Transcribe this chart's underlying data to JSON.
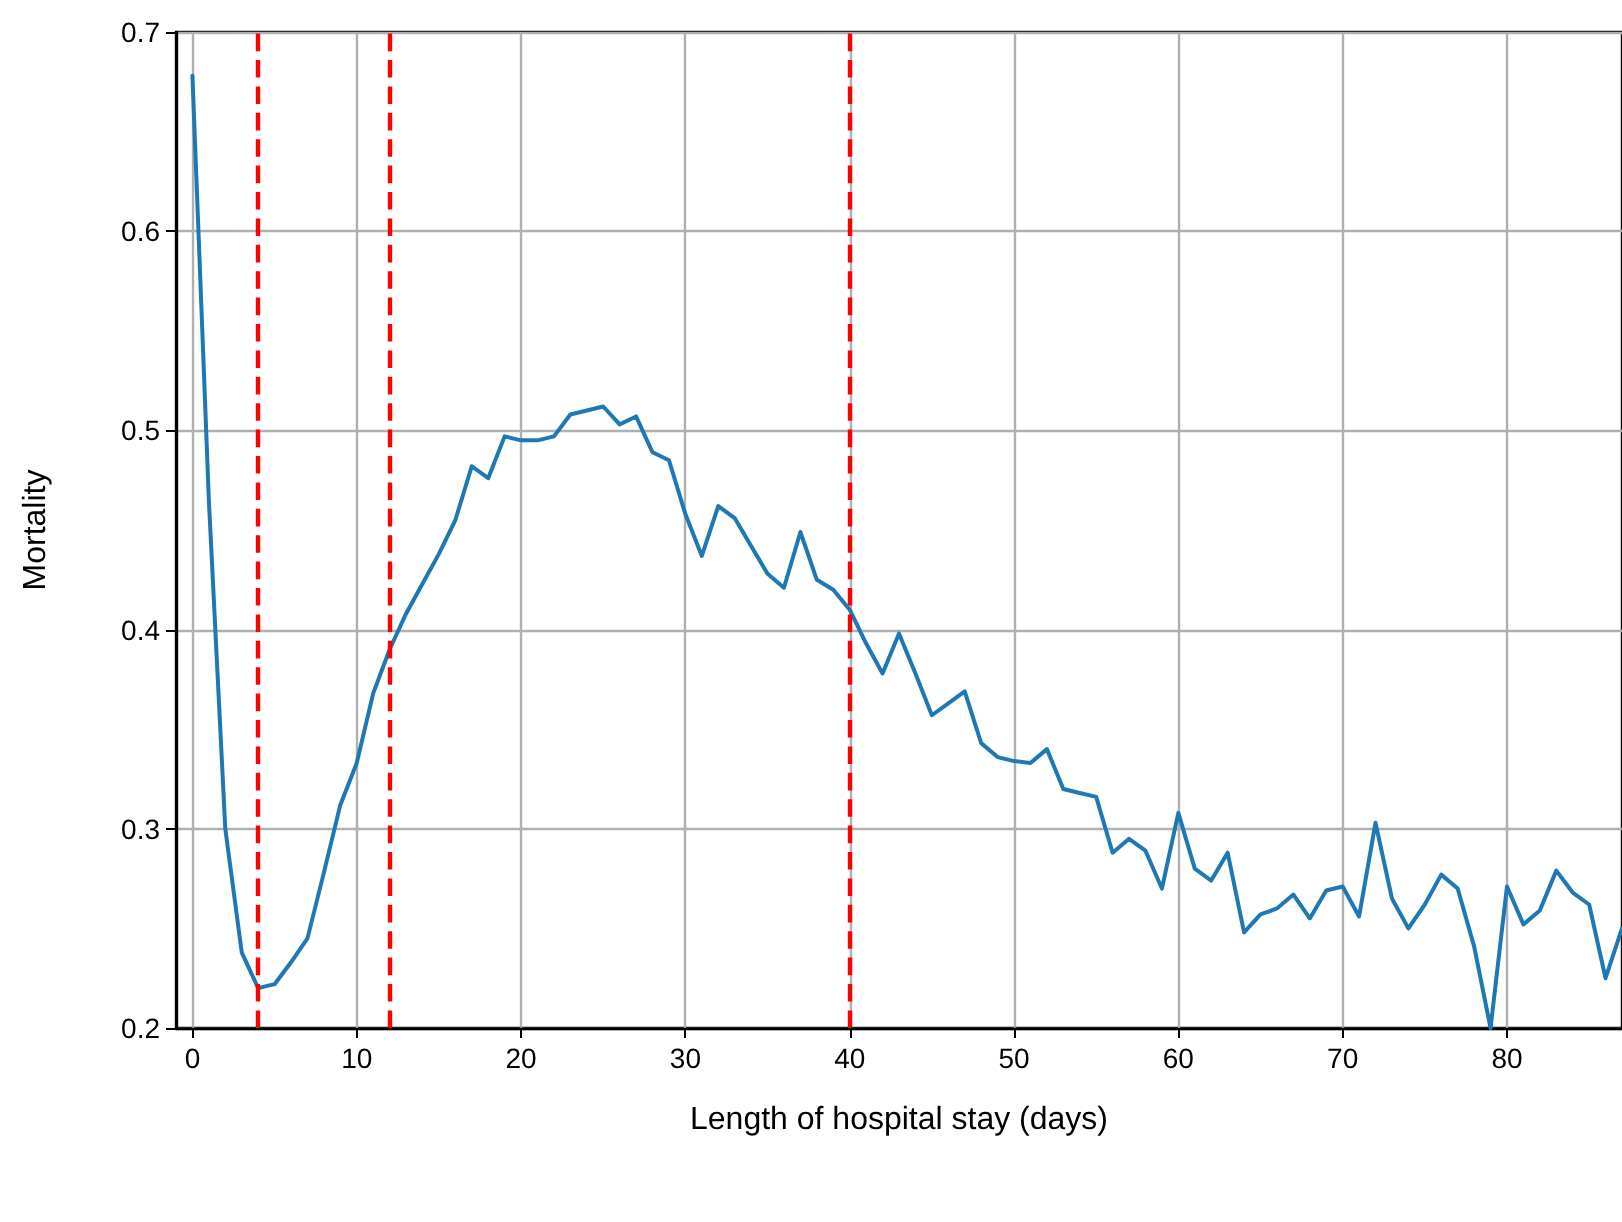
{
  "chart_data": {
    "type": "line",
    "xlabel": "Length of hospital stay (days)",
    "ylabel": "Mortality",
    "x": [
      0,
      1,
      2,
      3,
      4,
      5,
      6,
      7,
      8,
      9,
      10,
      11,
      12,
      13,
      14,
      15,
      16,
      17,
      18,
      19,
      20,
      21,
      22,
      23,
      24,
      25,
      26,
      27,
      28,
      29,
      30,
      31,
      32,
      33,
      34,
      35,
      36,
      37,
      38,
      39,
      40,
      41,
      42,
      43,
      44,
      45,
      46,
      47,
      48,
      49,
      50,
      51,
      52,
      53,
      54,
      55,
      56,
      57,
      58,
      59,
      60,
      61,
      62,
      63,
      64,
      65,
      66,
      67,
      68,
      69,
      70,
      71,
      72,
      73,
      74,
      75,
      76,
      77,
      78,
      79,
      80,
      81,
      82,
      83,
      84,
      85,
      86,
      87
    ],
    "series": [
      {
        "color": "#1f77b4",
        "values": [
          0.678,
          0.465,
          0.3,
          0.238,
          0.22,
          0.222,
          0.233,
          0.245,
          0.278,
          0.312,
          0.333,
          0.368,
          0.39,
          0.408,
          0.423,
          0.438,
          0.455,
          0.482,
          0.476,
          0.497,
          0.495,
          0.495,
          0.497,
          0.508,
          0.51,
          0.512,
          0.503,
          0.507,
          0.489,
          0.485,
          0.458,
          0.437,
          0.462,
          0.456,
          0.442,
          0.428,
          0.421,
          0.449,
          0.425,
          0.42,
          0.41,
          0.393,
          0.378,
          0.398,
          0.378,
          0.357,
          0.363,
          0.369,
          0.343,
          0.336,
          0.334,
          0.333,
          0.34,
          0.32,
          0.318,
          0.316,
          0.288,
          0.295,
          0.289,
          0.27,
          0.308,
          0.28,
          0.274,
          0.288,
          0.248,
          0.257,
          0.26,
          0.267,
          0.255,
          0.269,
          0.271,
          0.256,
          0.303,
          0.265,
          0.25,
          0.262,
          0.277,
          0.27,
          0.241,
          0.2,
          0.271,
          0.252,
          0.259,
          0.279,
          0.268,
          0.262,
          0.225,
          0.25
        ]
      }
    ],
    "xlim": [
      -1,
      87
    ],
    "xticks": [
      0,
      10,
      20,
      30,
      40,
      50,
      60,
      70,
      80
    ],
    "ylim": [
      0.2,
      0.7
    ],
    "yticks": [
      0.2,
      0.3,
      0.4,
      0.5,
      0.6,
      0.7
    ],
    "grid": true,
    "marker": "none",
    "line_style": "solid",
    "ref_lines": [
      {
        "axis": "x",
        "value": 4,
        "color": "#ff0000",
        "line_style": "dashed"
      },
      {
        "axis": "x",
        "value": 12,
        "color": "#ff0000",
        "line_style": "dashed"
      },
      {
        "axis": "x",
        "value": 40,
        "color": "#ff0000",
        "line_style": "dashed"
      }
    ]
  }
}
